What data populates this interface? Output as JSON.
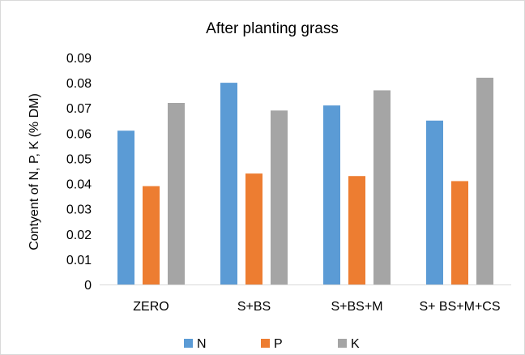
{
  "chart_data": {
    "type": "bar",
    "title": "After planting grass",
    "xlabel": "",
    "ylabel": "Contyent of N, P, K (% DM)",
    "categories": [
      "ZERO",
      "S+BS",
      "S+BS+M",
      "S+ BS+M+CS"
    ],
    "series": [
      {
        "name": "N",
        "color": "#5B9BD5",
        "values": [
          0.061,
          0.08,
          0.071,
          0.065
        ]
      },
      {
        "name": "P",
        "color": "#ED7D31",
        "values": [
          0.039,
          0.044,
          0.043,
          0.041
        ]
      },
      {
        "name": "K",
        "color": "#A5A5A5",
        "values": [
          0.072,
          0.069,
          0.077,
          0.082
        ]
      }
    ],
    "ylim": [
      0,
      0.09
    ],
    "yticks": [
      "0",
      "0.01",
      "0.02",
      "0.03",
      "0.04",
      "0.05",
      "0.06",
      "0.07",
      "0.08",
      "0.09"
    ],
    "grid": false,
    "legend_position": "bottom"
  }
}
